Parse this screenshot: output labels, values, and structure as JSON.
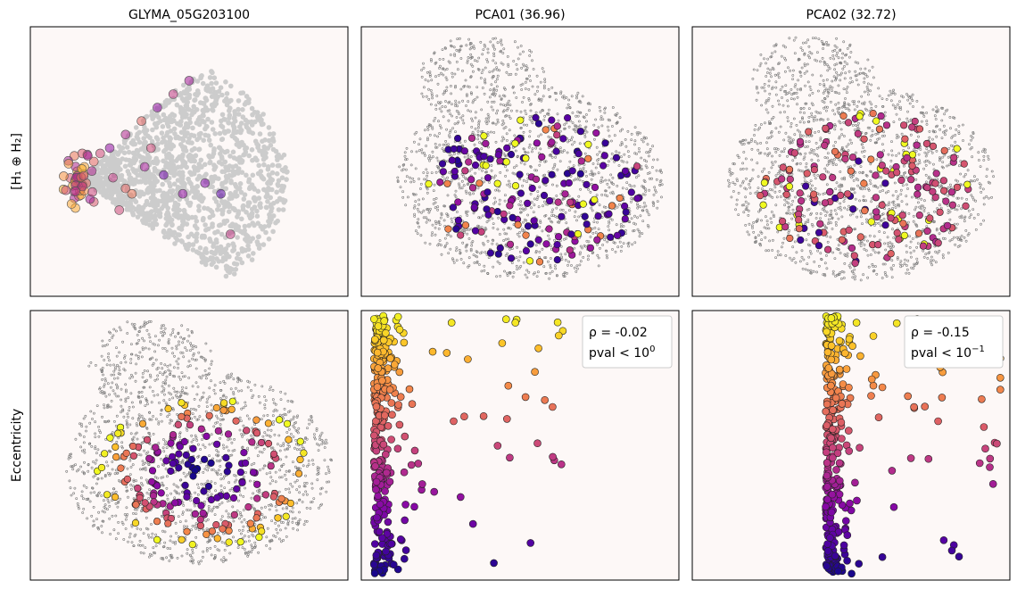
{
  "figure": {
    "column_titles": [
      "GLYMA_05G203100",
      "PCA01 (36.96)",
      "PCA02 (32.72)"
    ],
    "row_labels": [
      "[H₁ ⊕ H₂]",
      "Eccentricity"
    ],
    "colormap": "plasma",
    "colors": {
      "panel_background": "#fdf8f7",
      "tissue_points": "#7a7a7a",
      "embedding_points": "#cccccc",
      "cmap_low": "#0d0887",
      "cmap_high": "#f0f921"
    }
  },
  "stats": [
    {
      "rho_label": "ρ = -0.02",
      "pval_label": "pval < 10",
      "pval_exp": "0"
    },
    {
      "rho_label": "ρ = -0.15",
      "pval_label": "pval < 10",
      "pval_exp": "−1"
    }
  ],
  "chart_data": [
    {
      "type": "scatter",
      "title": "GLYMA_05G203100",
      "ylabel": "[H₁ ⊕ H₂]",
      "description": "Topological embedding: grey background cloud with highlighted points colored by expression",
      "background_cloud": "light grey fan-shaped cloud",
      "highlight_points": [
        {
          "x": 0.15,
          "y": 0.55,
          "v": 0.7
        },
        {
          "x": 0.17,
          "y": 0.52,
          "v": 0.8
        },
        {
          "x": 0.2,
          "y": 0.5,
          "v": 0.6
        },
        {
          "x": 0.16,
          "y": 0.6,
          "v": 0.75
        },
        {
          "x": 0.22,
          "y": 0.47,
          "v": 0.5
        },
        {
          "x": 0.25,
          "y": 0.45,
          "v": 0.3
        },
        {
          "x": 0.3,
          "y": 0.4,
          "v": 0.4
        },
        {
          "x": 0.35,
          "y": 0.35,
          "v": 0.6
        },
        {
          "x": 0.4,
          "y": 0.3,
          "v": 0.3
        },
        {
          "x": 0.45,
          "y": 0.25,
          "v": 0.45
        },
        {
          "x": 0.5,
          "y": 0.2,
          "v": 0.35
        },
        {
          "x": 0.38,
          "y": 0.45,
          "v": 0.5
        },
        {
          "x": 0.42,
          "y": 0.55,
          "v": 0.2
        },
        {
          "x": 0.48,
          "y": 0.62,
          "v": 0.3
        },
        {
          "x": 0.55,
          "y": 0.58,
          "v": 0.25
        },
        {
          "x": 0.6,
          "y": 0.62,
          "v": 0.15
        },
        {
          "x": 0.3,
          "y": 0.6,
          "v": 0.6
        },
        {
          "x": 0.28,
          "y": 0.68,
          "v": 0.5
        },
        {
          "x": 0.32,
          "y": 0.62,
          "v": 0.65
        },
        {
          "x": 0.2,
          "y": 0.65,
          "v": 0.55
        },
        {
          "x": 0.26,
          "y": 0.56,
          "v": 0.45
        },
        {
          "x": 0.36,
          "y": 0.52,
          "v": 0.35
        },
        {
          "x": 0.63,
          "y": 0.77,
          "v": 0.45
        }
      ]
    },
    {
      "type": "scatter",
      "title": "PCA01 (36.96)",
      "description": "Tissue section spatial plot colored by PCA01",
      "tissue_outline": "grey dotted tissue section",
      "color_range": "plasma, mostly dark purple/blue with few yellow"
    },
    {
      "type": "scatter",
      "title": "PCA02 (32.72)",
      "description": "Tissue section spatial plot colored by PCA02",
      "tissue_outline": "grey dotted tissue section",
      "color_range": "plasma, mostly magenta/pink with orange and yellow"
    },
    {
      "type": "scatter",
      "ylabel": "Eccentricity",
      "description": "Tissue section spatial plot colored by eccentricity (dark center, bright edges)",
      "tissue_outline": "grey dotted tissue section"
    },
    {
      "type": "scatter",
      "description": "Eccentricity (y, color) vs PCA01 (x)",
      "rho": -0.02,
      "pval_bound": "< 10^0",
      "color_by": "y (eccentricity)"
    },
    {
      "type": "scatter",
      "description": "Eccentricity (y, color) vs PCA02 (x)",
      "rho": -0.15,
      "pval_bound": "< 10^-1",
      "color_by": "y (eccentricity)"
    }
  ]
}
